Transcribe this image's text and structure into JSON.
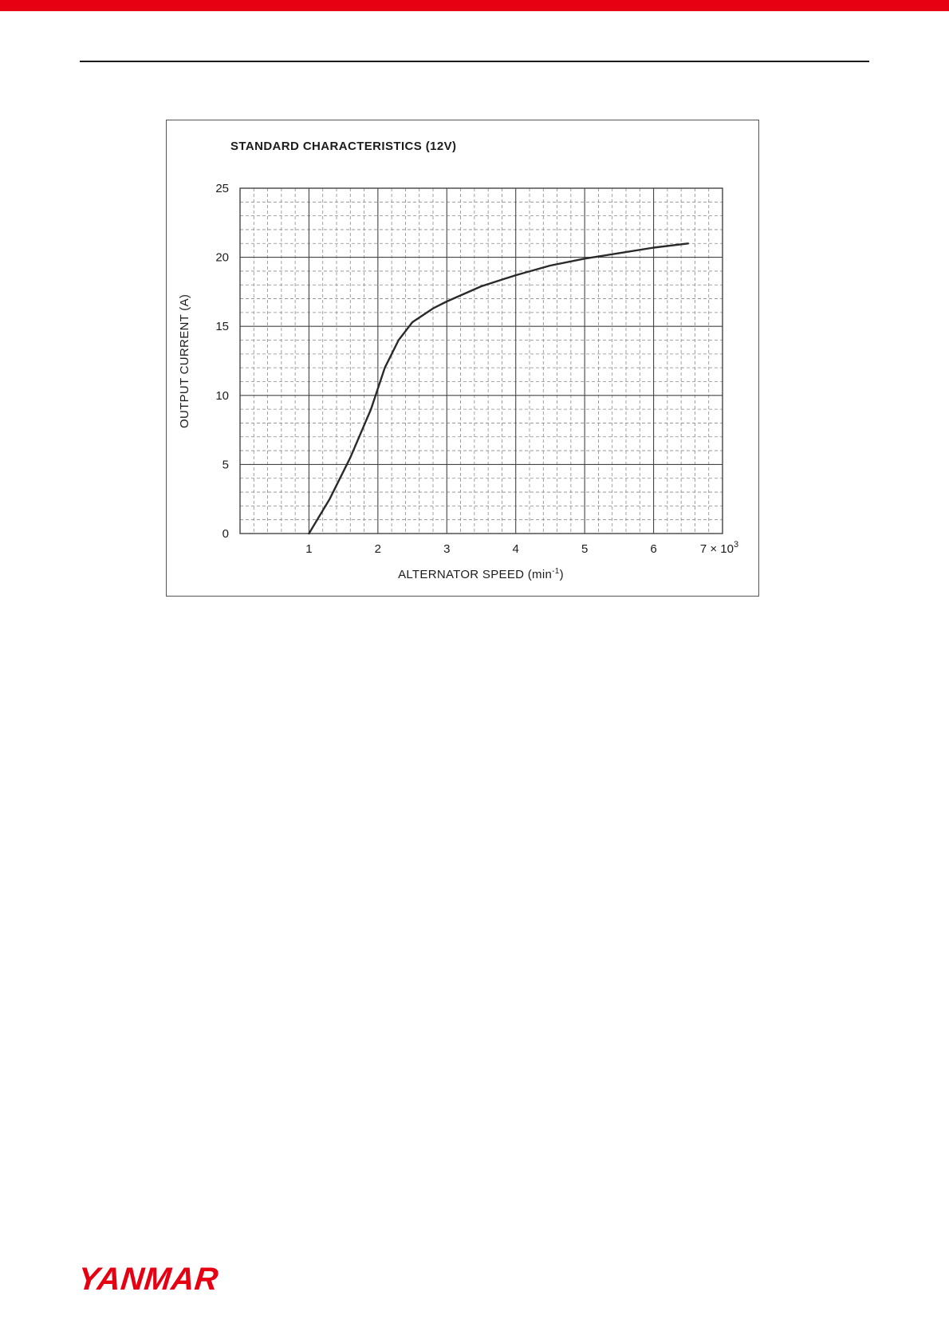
{
  "colors": {
    "brand_red": "#e60012",
    "header_rule": "#1a1a1a",
    "chart_frame": "#555555"
  },
  "chart_data": {
    "type": "line",
    "title": "STANDARD CHARACTERISTICS (12V)",
    "ylabel": "OUTPUT CURRENT (A)",
    "xlabel_base": "ALTERNATOR SPEED (min",
    "xlabel_exp": "-1",
    "xlabel_close": ")",
    "xlim": [
      0,
      7
    ],
    "ylim": [
      0,
      25
    ],
    "x_major_ticks": [
      1,
      2,
      3,
      4,
      5,
      6
    ],
    "x_last_tick": {
      "value": 7,
      "label_base": "7 × 10",
      "label_exp": "3"
    },
    "y_major_ticks": [
      0,
      5,
      10,
      15,
      20,
      25
    ],
    "x_minor_step": 0.2,
    "y_minor_step": 1,
    "x_units": "×10³ min⁻¹",
    "grid": "on",
    "legend": "none",
    "line_color": "#2a2a2a",
    "grid_major_color": "#444444",
    "grid_minor_color": "#8a8a8a",
    "series": [
      {
        "name": "output-current-vs-speed",
        "x": [
          1.0,
          1.3,
          1.6,
          1.9,
          2.1,
          2.3,
          2.5,
          2.8,
          3.0,
          3.5,
          4.0,
          4.5,
          5.0,
          5.5,
          6.0,
          6.5
        ],
        "y": [
          0,
          2.5,
          5.5,
          9.0,
          12.0,
          14.0,
          15.3,
          16.3,
          16.8,
          17.9,
          18.7,
          19.4,
          19.9,
          20.3,
          20.7,
          21.0
        ]
      }
    ]
  },
  "footer": {
    "logo_text": "YANMAR"
  }
}
